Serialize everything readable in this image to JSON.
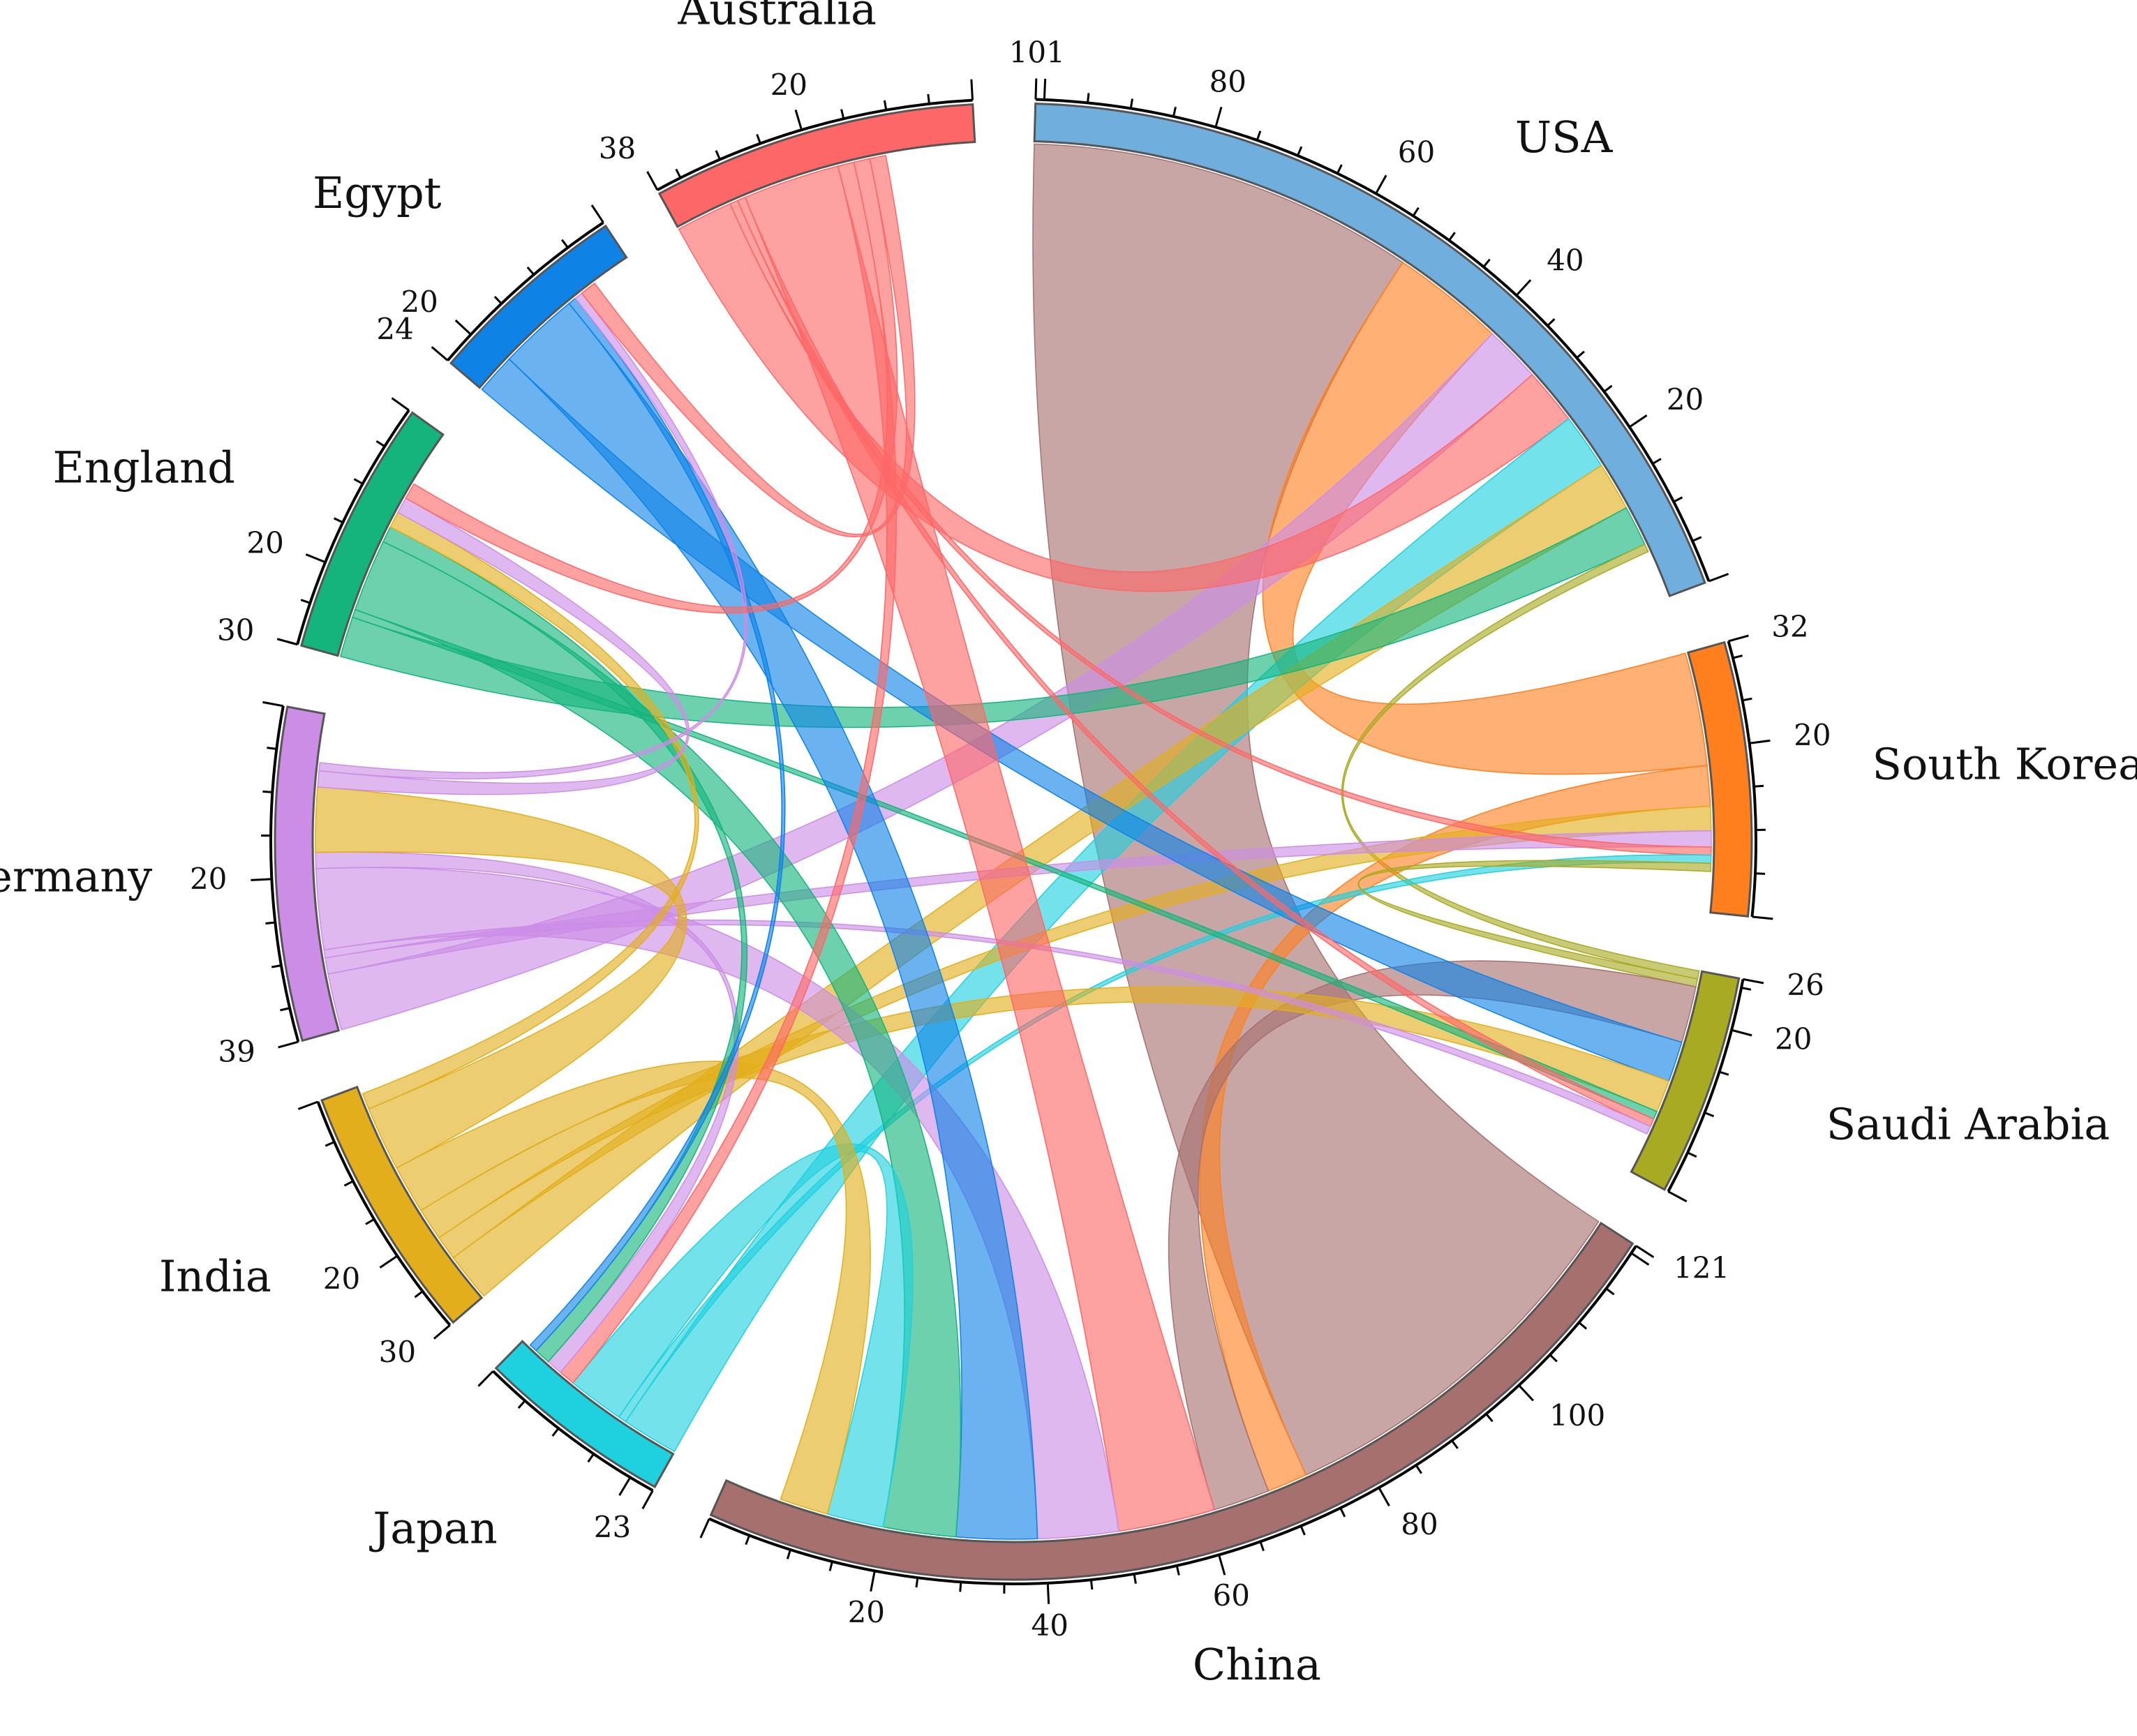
{
  "chart_data": {
    "type": "chord",
    "title": "",
    "nodes": [
      {
        "name": "USA",
        "total": 101,
        "color": "#6faedd",
        "ticks": [
          20,
          40,
          60,
          80
        ]
      },
      {
        "name": "South Korea",
        "total": 32,
        "color": "#ff7f1e",
        "ticks": [
          20
        ]
      },
      {
        "name": "Saudi Arabia",
        "total": 26,
        "color": "#a8aa22",
        "ticks": [
          20
        ]
      },
      {
        "name": "China",
        "total": 121,
        "color": "#a6706f",
        "ticks": [
          20,
          40,
          60,
          80,
          100
        ]
      },
      {
        "name": "Japan",
        "total": 23,
        "color": "#1fd0df",
        "ticks": []
      },
      {
        "name": "India",
        "total": 30,
        "color": "#e2ae1b",
        "ticks": [
          20
        ]
      },
      {
        "name": "Germany",
        "total": 39,
        "color": "#cc8de6",
        "ticks": [
          20
        ]
      },
      {
        "name": "England",
        "total": 30,
        "color": "#15b47c",
        "ticks": [
          20
        ]
      },
      {
        "name": "Egypt",
        "total": 24,
        "color": "#0f82e6",
        "ticks": [
          20
        ]
      },
      {
        "name": "Australia",
        "total": 38,
        "color": "#fe6767",
        "ticks": [
          20
        ]
      }
    ],
    "flows": [
      {
        "source": "China",
        "target": "USA",
        "value": 48
      },
      {
        "source": "South Korea",
        "target": "USA",
        "value": 14
      },
      {
        "source": "Germany",
        "target": "USA",
        "value": 7
      },
      {
        "source": "Australia",
        "target": "USA",
        "value": 7
      },
      {
        "source": "Japan",
        "target": "USA",
        "value": 7
      },
      {
        "source": "India",
        "target": "USA",
        "value": 6
      },
      {
        "source": "England",
        "target": "USA",
        "value": 5
      },
      {
        "source": "Saudi Arabia",
        "target": "USA",
        "value": 1
      },
      {
        "source": "South Korea",
        "target": "China",
        "value": 5
      },
      {
        "source": "India",
        "target": "South Korea",
        "value": 3
      },
      {
        "source": "Germany",
        "target": "South Korea",
        "value": 2
      },
      {
        "source": "Australia",
        "target": "South Korea",
        "value": 1
      },
      {
        "source": "Japan",
        "target": "South Korea",
        "value": 1
      },
      {
        "source": "Saudi Arabia",
        "target": "South Korea",
        "value": 1
      },
      {
        "source": "China",
        "target": "Saudi Arabia",
        "value": 7
      },
      {
        "source": "Egypt",
        "target": "Saudi Arabia",
        "value": 5
      },
      {
        "source": "India",
        "target": "Saudi Arabia",
        "value": 4
      },
      {
        "source": "England",
        "target": "Saudi Arabia",
        "value": 1
      },
      {
        "source": "Australia",
        "target": "Saudi Arabia",
        "value": 1
      },
      {
        "source": "Germany",
        "target": "Saudi Arabia",
        "value": 1
      },
      {
        "source": "Australia",
        "target": "China",
        "value": 12
      },
      {
        "source": "Germany",
        "target": "China",
        "value": 10
      },
      {
        "source": "Egypt",
        "target": "China",
        "value": 10
      },
      {
        "source": "England",
        "target": "China",
        "value": 9
      },
      {
        "source": "Japan",
        "target": "China",
        "value": 7
      },
      {
        "source": "India",
        "target": "China",
        "value": 6
      },
      {
        "source": "Australia",
        "target": "Japan",
        "value": 2
      },
      {
        "source": "Germany",
        "target": "Japan",
        "value": 2
      },
      {
        "source": "England",
        "target": "Japan",
        "value": 2
      },
      {
        "source": "Egypt",
        "target": "Japan",
        "value": 1
      },
      {
        "source": "India",
        "target": "Germany",
        "value": 8
      },
      {
        "source": "India",
        "target": "England",
        "value": 2
      },
      {
        "source": "Germany",
        "target": "England",
        "value": 2
      },
      {
        "source": "Germany",
        "target": "Egypt",
        "value": 1
      },
      {
        "source": "Australia",
        "target": "England",
        "value": 2
      },
      {
        "source": "Australia",
        "target": "Egypt",
        "value": 2
      }
    ]
  }
}
